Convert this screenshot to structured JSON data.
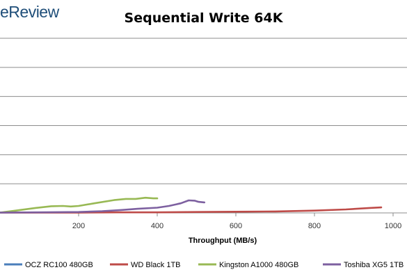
{
  "header": {
    "logo_text": "eReview"
  },
  "chart_data": {
    "type": "line",
    "title": "Sequential Write 64K",
    "xlabel": "Throughput (MB/s)",
    "ylabel": "",
    "xlim": [
      0,
      1000
    ],
    "ylim": [
      0,
      6
    ],
    "x_ticks": [
      "200",
      "400",
      "600",
      "800",
      "1000"
    ],
    "x_tick_values": [
      200,
      400,
      600,
      800,
      1000
    ],
    "grid": true,
    "legend_position": "bottom",
    "series": [
      {
        "name": "OCZ RC100 480GB",
        "color": "#4a7ebb",
        "points": []
      },
      {
        "name": "WD Black 1TB",
        "color": "#be4b48",
        "points": [
          [
            0,
            0.01
          ],
          [
            100,
            0.01
          ],
          [
            200,
            0.01
          ],
          [
            300,
            0.02
          ],
          [
            400,
            0.02
          ],
          [
            500,
            0.03
          ],
          [
            600,
            0.04
          ],
          [
            700,
            0.05
          ],
          [
            800,
            0.08
          ],
          [
            880,
            0.12
          ],
          [
            940,
            0.17
          ],
          [
            970,
            0.19
          ]
        ]
      },
      {
        "name": "Kingston A1000 480GB",
        "color": "#98b954",
        "points": [
          [
            0,
            0.01
          ],
          [
            40,
            0.08
          ],
          [
            90,
            0.17
          ],
          [
            130,
            0.23
          ],
          [
            160,
            0.24
          ],
          [
            180,
            0.22
          ],
          [
            200,
            0.24
          ],
          [
            240,
            0.33
          ],
          [
            290,
            0.44
          ],
          [
            320,
            0.48
          ],
          [
            345,
            0.48
          ],
          [
            370,
            0.52
          ],
          [
            390,
            0.5
          ],
          [
            400,
            0.5
          ]
        ]
      },
      {
        "name": "Toshiba XG5 1TB",
        "color": "#7d60a0",
        "points": [
          [
            0,
            0.01
          ],
          [
            100,
            0.02
          ],
          [
            200,
            0.03
          ],
          [
            260,
            0.06
          ],
          [
            310,
            0.1
          ],
          [
            350,
            0.14
          ],
          [
            400,
            0.18
          ],
          [
            430,
            0.24
          ],
          [
            460,
            0.33
          ],
          [
            480,
            0.43
          ],
          [
            495,
            0.42
          ],
          [
            505,
            0.38
          ],
          [
            520,
            0.36
          ]
        ]
      }
    ]
  }
}
